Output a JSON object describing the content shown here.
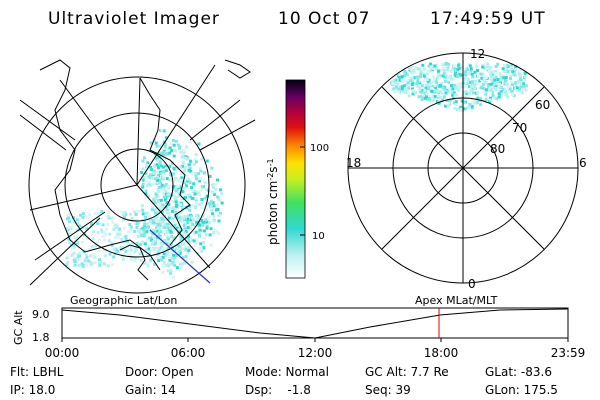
{
  "header": {
    "instrument": "Ultraviolet Imager",
    "date": "10 Oct 07",
    "time": "17:49:59 UT"
  },
  "colorbar": {
    "label": "photon cm",
    "exp1": "-2",
    "unit2": "s",
    "exp2": "-1",
    "ticks": [
      "100",
      "10"
    ]
  },
  "right_map": {
    "mlt_labels": [
      "12",
      "18",
      "6",
      "0"
    ],
    "lat_labels": [
      "60",
      "70",
      "80"
    ]
  },
  "timeline": {
    "left_title": "Geographic Lat/Lon",
    "right_title": "Apex MLat/MLT",
    "y_label": "GC Alt",
    "yticks": [
      "9.0",
      "1.8"
    ],
    "xticks": [
      "00:00",
      "06:00",
      "12:00",
      "18:00",
      "23:59"
    ]
  },
  "status": {
    "rows": [
      [
        "Flt: LBHL",
        "Door: Open",
        "Mode: Normal",
        "GC Alt: 7.7 Re",
        "GLat: -83.6"
      ],
      [
        "IP: 18.0",
        "Gain: 14",
        "Dsp:    -1.8",
        "Seq: 39",
        "GLon: 175.5"
      ]
    ]
  }
}
